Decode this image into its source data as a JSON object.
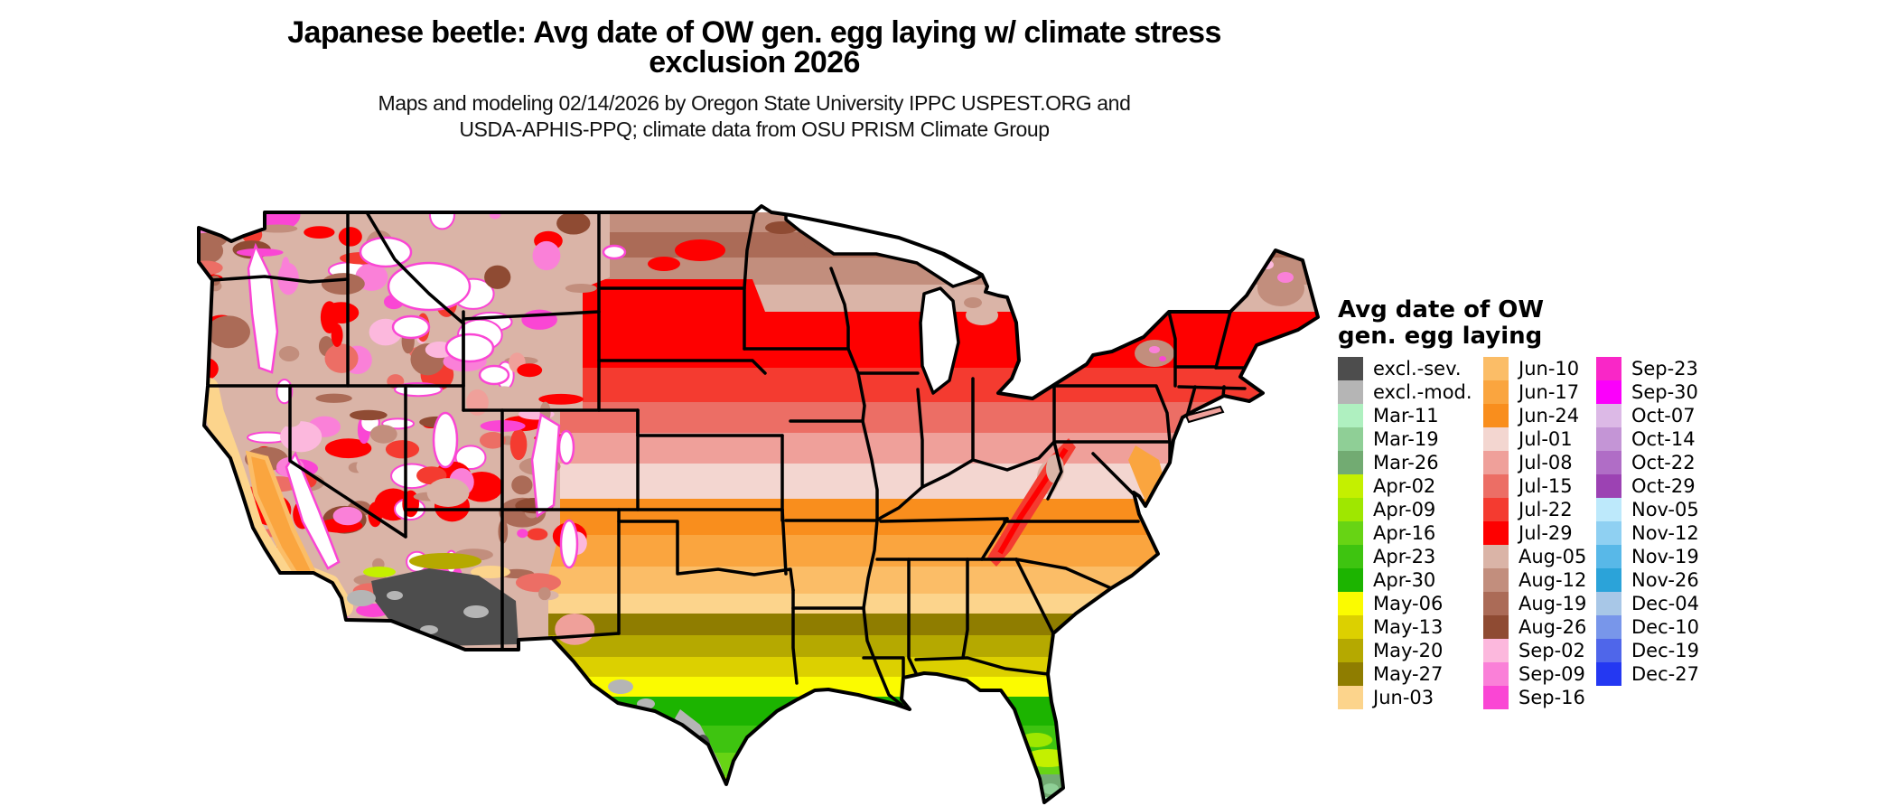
{
  "title": {
    "line1": "Japanese beetle: Avg date of OW gen. egg laying w/ climate stress",
    "line2": "exclusion 2026"
  },
  "subtitle": {
    "line1": "Maps and modeling 02/14/2026 by Oregon State University IPPC USPEST.ORG and",
    "line2": "USDA-APHIS-PPQ; climate data from OSU PRISM Climate Group"
  },
  "legend": {
    "title_line1": "Avg date of OW",
    "title_line2": "gen. egg laying",
    "columns": [
      [
        {
          "label": "excl.-sev.",
          "color": "#4d4d4d"
        },
        {
          "label": "excl.-mod.",
          "color": "#b5b5b5"
        },
        {
          "label": "Mar-11",
          "color": "#aff0c0"
        },
        {
          "label": "Mar-19",
          "color": "#8fcf96"
        },
        {
          "label": "Mar-26",
          "color": "#72ab72"
        },
        {
          "label": "Apr-02",
          "color": "#c4f000"
        },
        {
          "label": "Apr-09",
          "color": "#9fe700"
        },
        {
          "label": "Apr-16",
          "color": "#67d414"
        },
        {
          "label": "Apr-23",
          "color": "#3ec410"
        },
        {
          "label": "Apr-30",
          "color": "#1cb400"
        },
        {
          "label": "May-06",
          "color": "#fbfb00"
        },
        {
          "label": "May-13",
          "color": "#dcd000"
        },
        {
          "label": "May-20",
          "color": "#b5a900"
        },
        {
          "label": "May-27",
          "color": "#8f7d00"
        },
        {
          "label": "Jun-03",
          "color": "#fcd48c"
        }
      ],
      [
        {
          "label": "Jun-10",
          "color": "#fbbd67"
        },
        {
          "label": "Jun-17",
          "color": "#faa53f"
        },
        {
          "label": "Jun-24",
          "color": "#f98e1d"
        },
        {
          "label": "Jul-01",
          "color": "#f3d6d0"
        },
        {
          "label": "Jul-08",
          "color": "#efa09a"
        },
        {
          "label": "Jul-15",
          "color": "#ec6e65"
        },
        {
          "label": "Jul-22",
          "color": "#f43b30"
        },
        {
          "label": "Jul-29",
          "color": "#fe0000"
        },
        {
          "label": "Aug-05",
          "color": "#dab4a7"
        },
        {
          "label": "Aug-12",
          "color": "#c28e7d"
        },
        {
          "label": "Aug-19",
          "color": "#ab6b57"
        },
        {
          "label": "Aug-26",
          "color": "#8f4b33"
        },
        {
          "label": "Sep-02",
          "color": "#fcb8dd"
        },
        {
          "label": "Sep-09",
          "color": "#fa80d8"
        },
        {
          "label": "Sep-16",
          "color": "#fa46d4"
        }
      ],
      [
        {
          "label": "Sep-23",
          "color": "#f927c7"
        },
        {
          "label": "Sep-30",
          "color": "#fb00fb"
        },
        {
          "label": "Oct-07",
          "color": "#dcb9e6"
        },
        {
          "label": "Oct-14",
          "color": "#c495d6"
        },
        {
          "label": "Oct-22",
          "color": "#b06dc6"
        },
        {
          "label": "Oct-29",
          "color": "#9c42b3"
        },
        {
          "label": "Nov-05",
          "color": "#bde9fb"
        },
        {
          "label": "Nov-12",
          "color": "#8fd0f2"
        },
        {
          "label": "Nov-19",
          "color": "#58b8e8"
        },
        {
          "label": "Nov-26",
          "color": "#2ba3d9"
        },
        {
          "label": "Dec-04",
          "color": "#a8c7e7"
        },
        {
          "label": "Dec-10",
          "color": "#7896ea"
        },
        {
          "label": "Dec-19",
          "color": "#4f66ea"
        },
        {
          "label": "Dec-27",
          "color": "#2438f2"
        }
      ]
    ]
  },
  "map": {
    "background_color": "#ffffff",
    "border_color": "#000000"
  }
}
